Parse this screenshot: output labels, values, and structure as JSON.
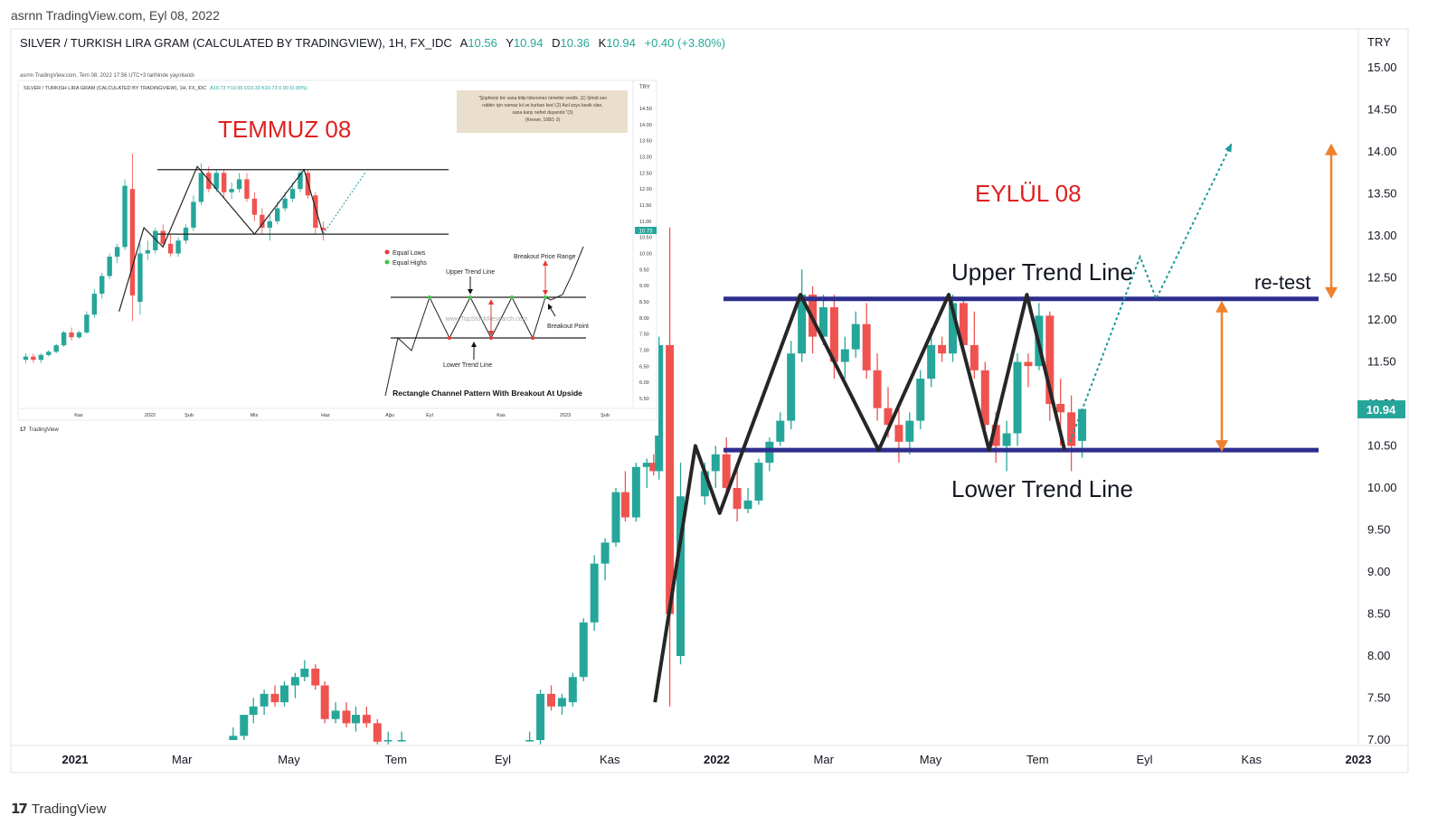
{
  "caption": "asrnn TradingView.com, Eyl 08, 2022",
  "logo": "TradingView",
  "logo_mark": "17",
  "colors": {
    "up": "#26a69a",
    "down": "#ef5350",
    "channel": "#2e2e8e",
    "arrow": "#f0812c",
    "teal_dotted": "#1a9a9a",
    "price_badge": "#26a69a",
    "label_red": "#e02020"
  },
  "chart_data": [
    {
      "type": "candlestick",
      "title": "SILVER / TURKISH LIRA GRAM (CALCULATED BY TRADINGVIEW), 1H, FX_IDC",
      "ohlc_text": {
        "o_label": "A",
        "o": "10.56",
        "h_label": "Y",
        "h": "10.94",
        "l_label": "D",
        "l": "10.36",
        "c_label": "K",
        "c": "10.94",
        "change": "+0.40 (+3.80%)"
      },
      "currency": "TRY",
      "ylim": [
        7.0,
        15.0
      ],
      "y_ticks": [
        "7.00",
        "7.50",
        "8.00",
        "8.50",
        "9.00",
        "9.50",
        "10.00",
        "10.50",
        "11.00",
        "11.50",
        "12.00",
        "12.50",
        "13.00",
        "13.50",
        "14.00",
        "14.50",
        "15.00"
      ],
      "x_ticks": [
        "2021",
        "Mar",
        "May",
        "Tem",
        "Eyl",
        "Kas",
        "2022",
        "Mar",
        "May",
        "Tem",
        "Eyl",
        "Kas",
        "2023"
      ],
      "x_tick_bold": [
        "2021",
        "2022",
        "2023"
      ],
      "last_price": "10.94",
      "annotation_title": "EYLÜL 08",
      "upper_trend_label": "Upper Trend Line",
      "lower_trend_label": "Lower Trend Line",
      "retest_label": "re-test",
      "upper_trend_value": 12.25,
      "lower_trend_value": 10.45,
      "candles": [
        {
          "x": 16.5,
          "o": 7.0,
          "h": 7.15,
          "l": 7.0,
          "c": 7.05
        },
        {
          "x": 17.3,
          "o": 7.05,
          "h": 7.25,
          "l": 7.0,
          "c": 7.3
        },
        {
          "x": 18.0,
          "o": 7.3,
          "h": 7.5,
          "l": 7.2,
          "c": 7.4
        },
        {
          "x": 18.8,
          "o": 7.4,
          "h": 7.6,
          "l": 7.3,
          "c": 7.55
        },
        {
          "x": 19.6,
          "o": 7.55,
          "h": 7.65,
          "l": 7.4,
          "c": 7.45
        },
        {
          "x": 20.3,
          "o": 7.45,
          "h": 7.7,
          "l": 7.4,
          "c": 7.65
        },
        {
          "x": 21.1,
          "o": 7.65,
          "h": 7.8,
          "l": 7.5,
          "c": 7.75
        },
        {
          "x": 21.8,
          "o": 7.75,
          "h": 7.95,
          "l": 7.7,
          "c": 7.85
        },
        {
          "x": 22.6,
          "o": 7.85,
          "h": 7.9,
          "l": 7.6,
          "c": 7.65
        },
        {
          "x": 23.3,
          "o": 7.65,
          "h": 7.7,
          "l": 7.2,
          "c": 7.25
        },
        {
          "x": 24.1,
          "o": 7.25,
          "h": 7.45,
          "l": 7.2,
          "c": 7.35
        },
        {
          "x": 24.9,
          "o": 7.35,
          "h": 7.45,
          "l": 7.15,
          "c": 7.2
        },
        {
          "x": 25.6,
          "o": 7.2,
          "h": 7.4,
          "l": 7.1,
          "c": 7.3
        },
        {
          "x": 26.4,
          "o": 7.3,
          "h": 7.4,
          "l": 7.15,
          "c": 7.2
        },
        {
          "x": 27.2,
          "o": 7.2,
          "h": 7.25,
          "l": 6.95,
          "c": 6.98
        },
        {
          "x": 28.0,
          "o": 7.0,
          "h": 7.1,
          "l": 6.95,
          "c": 7.0
        },
        {
          "x": 29.0,
          "o": 7.0,
          "h": 7.1,
          "l": 6.98,
          "c": 7.0
        },
        {
          "x": 38.5,
          "o": 7.0,
          "h": 7.1,
          "l": 6.98,
          "c": 7.0
        },
        {
          "x": 39.3,
          "o": 7.0,
          "h": 7.6,
          "l": 6.95,
          "c": 7.55
        },
        {
          "x": 40.1,
          "o": 7.55,
          "h": 7.65,
          "l": 7.35,
          "c": 7.4
        },
        {
          "x": 40.9,
          "o": 7.4,
          "h": 7.55,
          "l": 7.3,
          "c": 7.5
        },
        {
          "x": 41.7,
          "o": 7.45,
          "h": 7.8,
          "l": 7.4,
          "c": 7.75
        },
        {
          "x": 42.5,
          "o": 7.75,
          "h": 8.45,
          "l": 7.7,
          "c": 8.4
        },
        {
          "x": 43.3,
          "o": 8.4,
          "h": 9.2,
          "l": 8.3,
          "c": 9.1
        },
        {
          "x": 44.1,
          "o": 9.1,
          "h": 9.4,
          "l": 8.9,
          "c": 9.35
        },
        {
          "x": 44.9,
          "o": 9.35,
          "h": 10.0,
          "l": 9.3,
          "c": 9.95
        },
        {
          "x": 45.6,
          "o": 9.95,
          "h": 10.2,
          "l": 9.6,
          "c": 9.65
        },
        {
          "x": 46.4,
          "o": 9.65,
          "h": 10.3,
          "l": 9.6,
          "c": 10.25
        },
        {
          "x": 47.2,
          "o": 10.25,
          "h": 10.35,
          "l": 10.0,
          "c": 10.3
        },
        {
          "x": 47.7,
          "o": 10.3,
          "h": 10.4,
          "l": 10.15,
          "c": 10.2
        },
        {
          "x": 48.1,
          "o": 10.2,
          "h": 11.8,
          "l": 10.1,
          "c": 11.7
        },
        {
          "x": 48.9,
          "o": 11.7,
          "h": 13.1,
          "l": 7.4,
          "c": 8.5
        },
        {
          "x": 49.7,
          "o": 8.0,
          "h": 10.3,
          "l": 7.9,
          "c": 9.9
        },
        {
          "x": 51.5,
          "o": 9.9,
          "h": 10.3,
          "l": 9.8,
          "c": 10.2
        },
        {
          "x": 52.3,
          "o": 10.2,
          "h": 10.5,
          "l": 10.0,
          "c": 10.4
        },
        {
          "x": 53.1,
          "o": 10.4,
          "h": 10.6,
          "l": 9.9,
          "c": 10.0
        },
        {
          "x": 53.9,
          "o": 10.0,
          "h": 10.3,
          "l": 9.6,
          "c": 9.75
        },
        {
          "x": 54.7,
          "o": 9.75,
          "h": 10.0,
          "l": 9.7,
          "c": 9.85
        },
        {
          "x": 55.5,
          "o": 9.85,
          "h": 10.35,
          "l": 9.8,
          "c": 10.3
        },
        {
          "x": 56.3,
          "o": 10.3,
          "h": 10.6,
          "l": 10.2,
          "c": 10.55
        },
        {
          "x": 57.1,
          "o": 10.55,
          "h": 10.9,
          "l": 10.5,
          "c": 10.8
        },
        {
          "x": 57.9,
          "o": 10.8,
          "h": 11.75,
          "l": 10.7,
          "c": 11.6
        },
        {
          "x": 58.7,
          "o": 11.6,
          "h": 12.6,
          "l": 11.5,
          "c": 12.3
        },
        {
          "x": 59.5,
          "o": 12.3,
          "h": 12.4,
          "l": 11.6,
          "c": 11.8
        },
        {
          "x": 60.3,
          "o": 11.8,
          "h": 12.3,
          "l": 11.7,
          "c": 12.15
        },
        {
          "x": 61.1,
          "o": 12.15,
          "h": 12.3,
          "l": 11.3,
          "c": 11.5
        },
        {
          "x": 61.9,
          "o": 11.5,
          "h": 11.8,
          "l": 11.3,
          "c": 11.65
        },
        {
          "x": 62.7,
          "o": 11.65,
          "h": 12.1,
          "l": 11.55,
          "c": 11.95
        },
        {
          "x": 63.5,
          "o": 11.95,
          "h": 12.2,
          "l": 11.3,
          "c": 11.4
        },
        {
          "x": 64.3,
          "o": 11.4,
          "h": 11.6,
          "l": 10.8,
          "c": 10.95
        },
        {
          "x": 65.1,
          "o": 10.95,
          "h": 11.2,
          "l": 10.6,
          "c": 10.75
        },
        {
          "x": 65.9,
          "o": 10.75,
          "h": 11.0,
          "l": 10.3,
          "c": 10.55
        },
        {
          "x": 66.7,
          "o": 10.55,
          "h": 10.9,
          "l": 10.4,
          "c": 10.8
        },
        {
          "x": 67.5,
          "o": 10.8,
          "h": 11.4,
          "l": 10.7,
          "c": 11.3
        },
        {
          "x": 68.3,
          "o": 11.3,
          "h": 11.9,
          "l": 11.2,
          "c": 11.7
        },
        {
          "x": 69.1,
          "o": 11.7,
          "h": 11.8,
          "l": 11.5,
          "c": 11.6
        },
        {
          "x": 69.9,
          "o": 11.6,
          "h": 12.3,
          "l": 11.5,
          "c": 12.2
        },
        {
          "x": 70.7,
          "o": 12.2,
          "h": 12.25,
          "l": 11.6,
          "c": 11.7
        },
        {
          "x": 71.5,
          "o": 11.7,
          "h": 12.1,
          "l": 11.3,
          "c": 11.4
        },
        {
          "x": 72.3,
          "o": 11.4,
          "h": 11.5,
          "l": 10.6,
          "c": 10.75
        },
        {
          "x": 73.1,
          "o": 10.75,
          "h": 10.9,
          "l": 10.3,
          "c": 10.5
        },
        {
          "x": 73.9,
          "o": 10.5,
          "h": 10.8,
          "l": 10.2,
          "c": 10.65
        },
        {
          "x": 74.7,
          "o": 10.65,
          "h": 11.6,
          "l": 10.5,
          "c": 11.5
        },
        {
          "x": 75.5,
          "o": 11.5,
          "h": 11.6,
          "l": 11.2,
          "c": 11.45
        },
        {
          "x": 76.3,
          "o": 11.45,
          "h": 12.2,
          "l": 11.4,
          "c": 12.05
        },
        {
          "x": 77.1,
          "o": 12.05,
          "h": 12.1,
          "l": 10.8,
          "c": 11.0
        },
        {
          "x": 77.9,
          "o": 11.0,
          "h": 11.3,
          "l": 10.5,
          "c": 10.9
        },
        {
          "x": 78.7,
          "o": 10.9,
          "h": 11.1,
          "l": 10.2,
          "c": 10.5
        },
        {
          "x": 79.5,
          "o": 10.56,
          "h": 10.94,
          "l": 10.36,
          "c": 10.94
        }
      ],
      "zigzag": [
        [
          47.8,
          7.45
        ],
        [
          50.8,
          10.5
        ],
        [
          52.6,
          9.7
        ],
        [
          58.6,
          12.3
        ],
        [
          64.4,
          10.45
        ],
        [
          69.6,
          12.3
        ],
        [
          72.6,
          10.45
        ],
        [
          75.4,
          12.3
        ],
        [
          78.2,
          10.45
        ]
      ],
      "projection": [
        [
          78.6,
          10.55
        ],
        [
          83.8,
          12.75
        ],
        [
          85.0,
          12.25
        ],
        [
          90.6,
          14.1
        ]
      ]
    },
    {
      "type": "candlestick",
      "inset": true,
      "caption": "asrnn TradingView.com, Tem 08, 2022 17:56 UTC+3 tarihinde yayınlandı",
      "title": "SILVER / TURKISH LIRA GRAM (CALCULATED BY TRADINGVIEW), 1H, FX_IDC",
      "ohlc_text": "A10.73 Y10.96 D10.33 K10.73 0.00 (0.00%)",
      "currency": "TRY",
      "ylim": [
        5.5,
        14.5
      ],
      "y_ticks": [
        "5.50",
        "6.00",
        "6.50",
        "7.00",
        "7.50",
        "8.00",
        "8.50",
        "9.00",
        "9.50",
        "10.00",
        "10.50",
        "11.00",
        "11.50",
        "12.00",
        "12.50",
        "13.00",
        "13.50",
        "14.00",
        "14.50"
      ],
      "x_ticks": [
        "Kas",
        "2022",
        "Şub",
        "Mis",
        "Haz",
        "Ağu",
        "Eyl",
        "Kas",
        "2023",
        "Şub"
      ],
      "last_price": "10.73",
      "annotation_title": "TEMMUZ 08",
      "quote_lines": [
        "\"Şüphesiz biz sana bitip tükenmez nimetler verdik. (1) Şimdi sen",
        "rabbin için namaz kıl ve kurban kes! (2) Asıl soyu kesik olan,",
        "sana karşı nefret duyandır.\"(3)",
        "(Kevser, 108/1-3)"
      ],
      "logo": "TradingView",
      "upper_level": 12.6,
      "lower_level": 10.6,
      "candles": [
        {
          "x": 2,
          "o": 6.7,
          "h": 6.9,
          "l": 6.6,
          "c": 6.8
        },
        {
          "x": 4,
          "o": 6.8,
          "h": 6.9,
          "l": 6.6,
          "c": 6.7
        },
        {
          "x": 6,
          "o": 6.7,
          "h": 6.9,
          "l": 6.6,
          "c": 6.85
        },
        {
          "x": 8,
          "o": 6.85,
          "h": 7.0,
          "l": 6.8,
          "c": 6.95
        },
        {
          "x": 10,
          "o": 6.95,
          "h": 7.2,
          "l": 6.9,
          "c": 7.15
        },
        {
          "x": 12,
          "o": 7.15,
          "h": 7.6,
          "l": 7.1,
          "c": 7.55
        },
        {
          "x": 14,
          "o": 7.55,
          "h": 7.7,
          "l": 7.3,
          "c": 7.4
        },
        {
          "x": 16,
          "o": 7.4,
          "h": 7.6,
          "l": 7.35,
          "c": 7.55
        },
        {
          "x": 18,
          "o": 7.55,
          "h": 8.2,
          "l": 7.5,
          "c": 8.1
        },
        {
          "x": 20,
          "o": 8.1,
          "h": 8.9,
          "l": 8.0,
          "c": 8.75
        },
        {
          "x": 22,
          "o": 8.75,
          "h": 9.4,
          "l": 8.6,
          "c": 9.3
        },
        {
          "x": 24,
          "o": 9.3,
          "h": 10.0,
          "l": 9.2,
          "c": 9.9
        },
        {
          "x": 26,
          "o": 9.9,
          "h": 10.3,
          "l": 9.7,
          "c": 10.2
        },
        {
          "x": 28,
          "o": 10.2,
          "h": 12.3,
          "l": 10.1,
          "c": 12.1
        },
        {
          "x": 30,
          "o": 12.0,
          "h": 13.1,
          "l": 7.9,
          "c": 8.7
        },
        {
          "x": 32,
          "o": 8.5,
          "h": 10.3,
          "l": 8.1,
          "c": 10.0
        },
        {
          "x": 34,
          "o": 10.0,
          "h": 10.4,
          "l": 9.8,
          "c": 10.1
        },
        {
          "x": 36,
          "o": 10.1,
          "h": 10.8,
          "l": 10.0,
          "c": 10.7
        },
        {
          "x": 38,
          "o": 10.7,
          "h": 10.9,
          "l": 10.2,
          "c": 10.3
        },
        {
          "x": 40,
          "o": 10.3,
          "h": 10.6,
          "l": 9.9,
          "c": 10.0
        },
        {
          "x": 42,
          "o": 10.0,
          "h": 10.5,
          "l": 9.9,
          "c": 10.4
        },
        {
          "x": 44,
          "o": 10.4,
          "h": 10.9,
          "l": 10.3,
          "c": 10.8
        },
        {
          "x": 46,
          "o": 10.8,
          "h": 11.8,
          "l": 10.7,
          "c": 11.6
        },
        {
          "x": 48,
          "o": 11.6,
          "h": 12.8,
          "l": 11.5,
          "c": 12.5
        },
        {
          "x": 50,
          "o": 12.5,
          "h": 12.7,
          "l": 11.9,
          "c": 12.0
        },
        {
          "x": 52,
          "o": 12.0,
          "h": 12.6,
          "l": 11.9,
          "c": 12.5
        },
        {
          "x": 54,
          "o": 12.5,
          "h": 12.6,
          "l": 11.7,
          "c": 11.9
        },
        {
          "x": 56,
          "o": 11.9,
          "h": 12.2,
          "l": 11.7,
          "c": 12.0
        },
        {
          "x": 58,
          "o": 12.0,
          "h": 12.5,
          "l": 11.9,
          "c": 12.3
        },
        {
          "x": 60,
          "o": 12.3,
          "h": 12.5,
          "l": 11.6,
          "c": 11.7
        },
        {
          "x": 62,
          "o": 11.7,
          "h": 11.9,
          "l": 11.0,
          "c": 11.2
        },
        {
          "x": 64,
          "o": 11.2,
          "h": 11.4,
          "l": 10.6,
          "c": 10.8
        },
        {
          "x": 66,
          "o": 10.8,
          "h": 11.2,
          "l": 10.4,
          "c": 11.0
        },
        {
          "x": 68,
          "o": 11.0,
          "h": 11.6,
          "l": 10.9,
          "c": 11.4
        },
        {
          "x": 70,
          "o": 11.4,
          "h": 11.9,
          "l": 11.3,
          "c": 11.7
        },
        {
          "x": 72,
          "o": 11.7,
          "h": 12.2,
          "l": 11.6,
          "c": 12.0
        },
        {
          "x": 74,
          "o": 12.0,
          "h": 12.6,
          "l": 11.9,
          "c": 12.5
        },
        {
          "x": 76,
          "o": 12.5,
          "h": 12.6,
          "l": 11.7,
          "c": 11.8
        },
        {
          "x": 78,
          "o": 11.8,
          "h": 11.9,
          "l": 10.6,
          "c": 10.8
        },
        {
          "x": 80,
          "o": 10.8,
          "h": 11.0,
          "l": 10.4,
          "c": 10.73
        }
      ],
      "zigzag": [
        [
          26.5,
          8.2
        ],
        [
          33,
          10.8
        ],
        [
          38,
          10.2
        ],
        [
          47,
          12.7
        ],
        [
          62,
          10.6
        ],
        [
          75,
          12.6
        ],
        [
          80,
          10.6
        ]
      ],
      "projection": [
        [
          80,
          10.6
        ],
        [
          91,
          12.5
        ]
      ],
      "diagram": {
        "legend": [
          "Equal Lows",
          "Equal Highs"
        ],
        "legend_colors": [
          "#e53935",
          "#43c443"
        ],
        "labels": {
          "upper": "Upper Trend Line",
          "lower": "Lower Trend Line",
          "breakout_range": "Breakout Price Range",
          "breakout_point": "Breakout Point",
          "watermark": "www.TopStockResearch.com",
          "caption": "Rectangle Channel Pattern With Breakout At Upside"
        }
      }
    }
  ]
}
